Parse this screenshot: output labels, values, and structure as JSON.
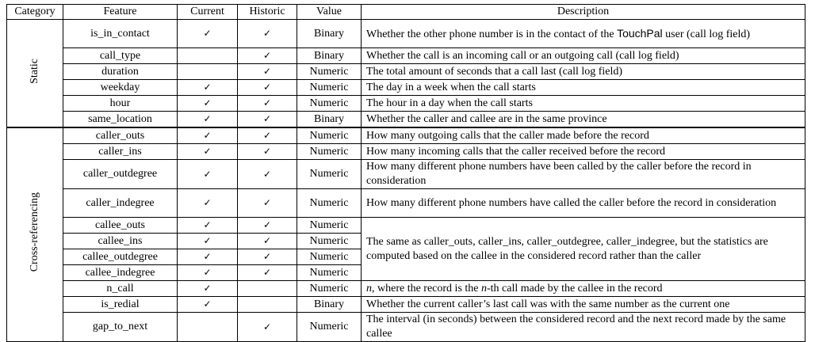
{
  "headers": {
    "category": "Category",
    "feature": "Feature",
    "current": "Current",
    "historic": "Historic",
    "value": "Value",
    "description": "Description"
  },
  "check_symbol": "✓",
  "groups": {
    "static": "Static",
    "cross": "Cross-referencing"
  },
  "rows": [
    {
      "feature": "is_in_contact",
      "value": "Binary",
      "desc_a": "Whether the other phone number is in the contact of the ",
      "desc_brand": "TouchPal",
      "desc_b": " user (call log field)"
    },
    {
      "feature": "call_type",
      "value": "Binary",
      "desc": "Whether the call is an incoming call or an outgoing call (call log field)"
    },
    {
      "feature": "duration",
      "value": "Numeric",
      "desc": "The total amount of seconds that a call last (call log field)"
    },
    {
      "feature": "weekday",
      "value": "Numeric",
      "desc": "The day in a week when the call starts"
    },
    {
      "feature": "hour",
      "value": "Numeric",
      "desc": "The hour in a day when the call starts"
    },
    {
      "feature": "same_location",
      "value": "Binary",
      "desc": "Whether the caller and callee are in the same province"
    },
    {
      "feature": "caller_outs",
      "value": "Numeric",
      "desc": "How many outgoing calls that the caller made before the record"
    },
    {
      "feature": "caller_ins",
      "value": "Numeric",
      "desc": "How many incoming calls that the caller received before the record"
    },
    {
      "feature": "caller_outdegree",
      "value": "Numeric",
      "desc": "How many different phone numbers have been called by the caller before the record in consideration"
    },
    {
      "feature": "caller_indegree",
      "value": "Numeric",
      "desc": "How many different phone numbers have called the caller before the record in consideration"
    },
    {
      "feature": "callee_outs",
      "value": "Numeric"
    },
    {
      "feature": "callee_ins",
      "value": "Numeric"
    },
    {
      "feature": "callee_outdegree",
      "value": "Numeric"
    },
    {
      "feature": "callee_indegree",
      "value": "Numeric"
    },
    {
      "feature": "n_call",
      "value": "Numeric",
      "desc_n1": "n",
      "desc_mid": ", where the record is the ",
      "desc_n2": "n",
      "desc_end": "-th call made by the callee in the record"
    },
    {
      "feature": "is_redial",
      "value": "Binary",
      "desc": "Whether the current caller’s last call was with the same number as the current one"
    },
    {
      "feature": "gap_to_next",
      "value": "Numeric",
      "desc": "The interval (in seconds) between the considered record and the next record made by the same callee"
    }
  ],
  "merged_desc": "The same as caller_outs, caller_ins, caller_outdegree, caller_indegree, but the statistics are computed based on the callee in the considered record rather than the caller"
}
